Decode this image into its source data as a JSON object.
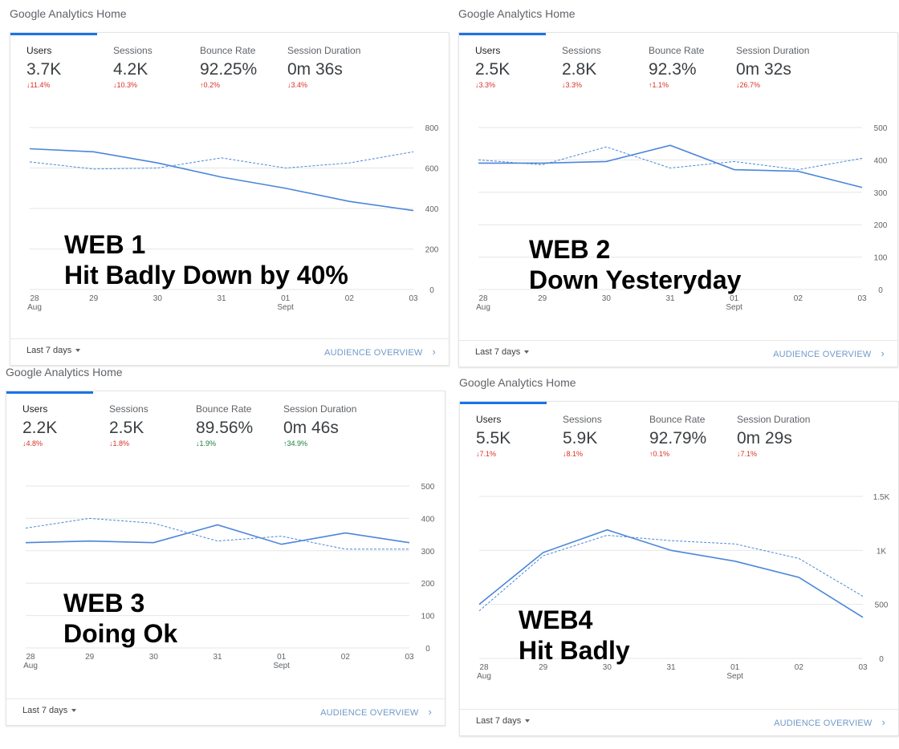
{
  "panels": [
    {
      "title": "Google Analytics Home",
      "metrics": [
        {
          "label": "Users",
          "value": "3.7K",
          "change": "11.4%",
          "dir": "down"
        },
        {
          "label": "Sessions",
          "value": "4.2K",
          "change": "10.3%",
          "dir": "down"
        },
        {
          "label": "Bounce Rate",
          "value": "92.25%",
          "change": "0.2%",
          "dir": "up-bad"
        },
        {
          "label": "Session Duration",
          "value": "0m 36s",
          "change": "3.4%",
          "dir": "down"
        }
      ],
      "overlay": [
        "WEB 1",
        "Hit Badly Down by 40%"
      ],
      "footer": {
        "range": "Last 7 days",
        "link": "AUDIENCE OVERVIEW"
      },
      "chart_data": {
        "type": "line",
        "x": [
          "28",
          "29",
          "30",
          "31",
          "01",
          "02",
          "03"
        ],
        "x_sublabels": [
          "Aug",
          "",
          "",
          "",
          "Sept",
          "",
          ""
        ],
        "y_ticks": [
          "800",
          "600",
          "400",
          "200",
          "0"
        ],
        "y_tick_values": [
          800,
          600,
          400,
          200,
          0
        ],
        "ylim": [
          0,
          800
        ],
        "series": [
          {
            "style": "solid",
            "values": [
              695,
              680,
              625,
              555,
              500,
              435,
              390
            ]
          },
          {
            "style": "dashed",
            "values": [
              630,
              595,
              600,
              650,
              600,
              625,
              680
            ]
          }
        ]
      }
    },
    {
      "title": "Google Analytics Home",
      "metrics": [
        {
          "label": "Users",
          "value": "2.5K",
          "change": "3.3%",
          "dir": "down"
        },
        {
          "label": "Sessions",
          "value": "2.8K",
          "change": "3.3%",
          "dir": "down"
        },
        {
          "label": "Bounce Rate",
          "value": "92.3%",
          "change": "1.1%",
          "dir": "up-bad"
        },
        {
          "label": "Session Duration",
          "value": "0m 32s",
          "change": "26.7%",
          "dir": "down"
        }
      ],
      "overlay": [
        "WEB 2",
        "Down Yesteryday"
      ],
      "footer": {
        "range": "Last 7 days",
        "link": "AUDIENCE OVERVIEW"
      },
      "chart_data": {
        "type": "line",
        "x": [
          "28",
          "29",
          "30",
          "31",
          "01",
          "02",
          "03"
        ],
        "x_sublabels": [
          "Aug",
          "",
          "",
          "",
          "Sept",
          "",
          ""
        ],
        "y_ticks": [
          "500",
          "400",
          "300",
          "200",
          "100",
          "0"
        ],
        "y_tick_values": [
          500,
          400,
          300,
          200,
          100,
          0
        ],
        "ylim": [
          0,
          500
        ],
        "series": [
          {
            "style": "solid",
            "values": [
              390,
              390,
              395,
              445,
              370,
              365,
              315
            ]
          },
          {
            "style": "dashed",
            "values": [
              400,
              385,
              440,
              375,
              395,
              370,
              405
            ]
          }
        ]
      }
    },
    {
      "title": "Google Analytics Home",
      "metrics": [
        {
          "label": "Users",
          "value": "2.2K",
          "change": "4.8%",
          "dir": "down"
        },
        {
          "label": "Sessions",
          "value": "2.5K",
          "change": "1.8%",
          "dir": "down"
        },
        {
          "label": "Bounce Rate",
          "value": "89.56%",
          "change": "1.9%",
          "dir": "down-good"
        },
        {
          "label": "Session Duration",
          "value": "0m 46s",
          "change": "34.9%",
          "dir": "up-good"
        }
      ],
      "overlay": [
        "WEB 3",
        "Doing Ok"
      ],
      "footer": {
        "range": "Last 7 days",
        "link": "AUDIENCE OVERVIEW"
      },
      "chart_data": {
        "type": "line",
        "x": [
          "28",
          "29",
          "30",
          "31",
          "01",
          "02",
          "03"
        ],
        "x_sublabels": [
          "Aug",
          "",
          "",
          "",
          "Sept",
          "",
          ""
        ],
        "y_ticks": [
          "500",
          "400",
          "300",
          "200",
          "100",
          "0"
        ],
        "y_tick_values": [
          500,
          400,
          300,
          200,
          100,
          0
        ],
        "ylim": [
          0,
          500
        ],
        "series": [
          {
            "style": "solid",
            "values": [
              325,
              330,
              325,
              380,
              320,
              355,
              325
            ]
          },
          {
            "style": "dashed",
            "values": [
              370,
              400,
              385,
              330,
              345,
              305,
              305
            ]
          }
        ]
      }
    },
    {
      "title": "Google Analytics Home",
      "metrics": [
        {
          "label": "Users",
          "value": "5.5K",
          "change": "7.1%",
          "dir": "down"
        },
        {
          "label": "Sessions",
          "value": "5.9K",
          "change": "8.1%",
          "dir": "down"
        },
        {
          "label": "Bounce Rate",
          "value": "92.79%",
          "change": "0.1%",
          "dir": "up-bad"
        },
        {
          "label": "Session Duration",
          "value": "0m 29s",
          "change": "7.1%",
          "dir": "down"
        }
      ],
      "overlay": [
        "WEB4",
        "Hit Badly"
      ],
      "footer": {
        "range": "Last 7 days",
        "link": "AUDIENCE OVERVIEW"
      },
      "chart_data": {
        "type": "line",
        "x": [
          "28",
          "29",
          "30",
          "31",
          "01",
          "02",
          "03"
        ],
        "x_sublabels": [
          "Aug",
          "",
          "",
          "",
          "Sept",
          "",
          ""
        ],
        "y_ticks": [
          "1.5K",
          "1K",
          "500",
          "0"
        ],
        "y_tick_values": [
          1500,
          1000,
          500,
          0
        ],
        "ylim": [
          0,
          1500
        ],
        "series": [
          {
            "style": "solid",
            "values": [
              500,
              980,
              1190,
              1000,
              900,
              750,
              380
            ]
          },
          {
            "style": "dashed",
            "values": [
              440,
              950,
              1140,
              1090,
              1060,
              925,
              575
            ]
          }
        ]
      }
    }
  ],
  "colors": {
    "accent": "#1a73e8",
    "line": "#4a86d9",
    "negative": "#d93025",
    "positive": "#188038",
    "link": "#6f9ac8"
  }
}
